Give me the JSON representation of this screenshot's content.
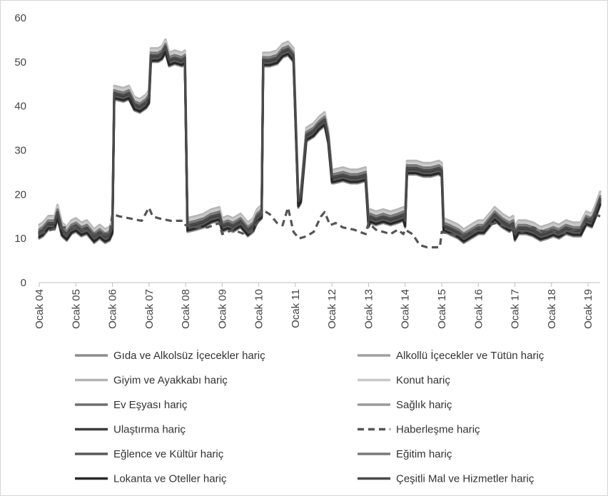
{
  "chart_data": {
    "type": "line",
    "title": "",
    "xlabel": "",
    "ylabel": "",
    "ylim": [
      0,
      60
    ],
    "y_ticks": [
      0,
      10,
      20,
      30,
      40,
      50,
      60
    ],
    "x_range": [
      2004.0,
      2019.33
    ],
    "x_tick_labels": [
      "Ocak 04",
      "Ocak 05",
      "Ocak 06",
      "Ocak 07",
      "Ocak 08",
      "Ocak 09",
      "Ocak 10",
      "Ocak 11",
      "Ocak 12",
      "Ocak 13",
      "Ocak 14",
      "Ocak 15",
      "Ocak 16",
      "Ocak 17",
      "Ocak 18",
      "Ocak 19"
    ],
    "x_tick_positions": [
      2004,
      2005,
      2006,
      2007,
      2008,
      2009,
      2010,
      2011,
      2012,
      2013,
      2014,
      2015,
      2016,
      2017,
      2018,
      2019
    ],
    "grid": false,
    "legend_position": "bottom",
    "base_profile": {
      "x": [
        2004.0,
        2004.1,
        2004.25,
        2004.42,
        2004.5,
        2004.62,
        2004.75,
        2004.88,
        2005.0,
        2005.15,
        2005.3,
        2005.5,
        2005.65,
        2005.8,
        2005.92,
        2006.0,
        2006.05,
        2006.3,
        2006.45,
        2006.6,
        2006.75,
        2006.92,
        2007.0,
        2007.05,
        2007.25,
        2007.35,
        2007.45,
        2007.55,
        2007.7,
        2007.9,
        2007.98,
        2008.05,
        2008.3,
        2008.5,
        2008.7,
        2008.92,
        2009.0,
        2009.15,
        2009.3,
        2009.5,
        2009.7,
        2009.85,
        2009.95,
        2010.08,
        2010.12,
        2010.3,
        2010.5,
        2010.65,
        2010.8,
        2010.95,
        2011.08,
        2011.15,
        2011.3,
        2011.5,
        2011.65,
        2011.8,
        2011.9,
        2012.0,
        2012.05,
        2012.3,
        2012.5,
        2012.7,
        2012.92,
        2013.0,
        2013.05,
        2013.2,
        2013.4,
        2013.6,
        2013.8,
        2013.95,
        2014.0,
        2014.05,
        2014.3,
        2014.5,
        2014.7,
        2014.92,
        2015.0,
        2015.05,
        2015.2,
        2015.45,
        2015.6,
        2015.8,
        2016.0,
        2016.15,
        2016.25,
        2016.45,
        2016.65,
        2016.85,
        2016.95,
        2017.0,
        2017.1,
        2017.3,
        2017.5,
        2017.7,
        2017.9,
        2018.05,
        2018.2,
        2018.4,
        2018.6,
        2018.8,
        2018.95,
        2019.1,
        2019.2,
        2019.33
      ],
      "y": [
        11.5,
        12,
        13.5,
        13.5,
        16,
        12,
        11,
        12.5,
        13,
        12,
        12.5,
        10.5,
        11.5,
        10.5,
        11,
        12.5,
        43,
        42.5,
        43,
        40.5,
        40,
        41,
        42,
        51.5,
        51.5,
        52,
        53.5,
        50.5,
        51,
        50.5,
        51,
        13,
        13.5,
        14,
        15,
        15.5,
        13,
        13.5,
        13,
        14,
        12,
        13,
        15,
        16,
        50.5,
        50.5,
        51,
        52.5,
        53,
        51.5,
        18.5,
        19.5,
        33.5,
        34.5,
        36,
        37,
        33,
        24,
        24,
        24.5,
        24,
        24,
        24.5,
        14,
        15,
        14.5,
        15,
        14.5,
        15,
        15.5,
        14,
        26,
        26,
        25.5,
        25.5,
        26,
        25.5,
        13,
        12.5,
        11.5,
        10.5,
        11.5,
        12.5,
        12.5,
        13.5,
        15.5,
        14,
        13,
        13.5,
        11,
        12.5,
        12.5,
        12,
        11,
        11.5,
        12,
        11.5,
        12.5,
        12,
        12,
        14.5,
        14,
        16,
        19
      ]
    },
    "series": [
      {
        "name": "Gıda ve Alkolsüz İçecekler hariç",
        "offset": -1.5,
        "color": "#8c8c8c",
        "dash": false
      },
      {
        "name": "Alkollü İçecekler ve Tütün hariç",
        "offset": -0.3,
        "color": "#a0a0a0",
        "dash": false
      },
      {
        "name": "Giyim ve Ayakkabı hariç",
        "offset": 1.6,
        "color": "#b4b4b4",
        "dash": false
      },
      {
        "name": "Konut hariç",
        "offset": 1.2,
        "color": "#c8c8c8",
        "dash": false
      },
      {
        "name": "Ev Eşyası hariç",
        "offset": -0.2,
        "color": "#6e6e6e",
        "dash": false
      },
      {
        "name": "Sağlık hariç",
        "offset": 0.3,
        "color": "#9a9a9a",
        "dash": false
      },
      {
        "name": "Ulaştırma hariç",
        "offset": -0.5,
        "color": "#3c3c3c",
        "dash": false
      },
      {
        "name": "Haberleşme hariç",
        "color": "#555555",
        "dash": true,
        "x": [
          2004.0,
          2004.5,
          2005.0,
          2005.5,
          2005.92,
          2006.0,
          2006.2,
          2006.5,
          2006.8,
          2007.0,
          2007.1,
          2007.3,
          2007.6,
          2007.92,
          2008.0,
          2008.3,
          2008.6,
          2008.92,
          2009.0,
          2009.3,
          2009.6,
          2009.8,
          2010.0,
          2010.1,
          2010.3,
          2010.5,
          2010.65,
          2010.8,
          2010.95,
          2011.1,
          2011.3,
          2011.5,
          2011.7,
          2011.8,
          2011.95,
          2012.1,
          2012.3,
          2012.6,
          2012.92,
          2013.0,
          2013.2,
          2013.4,
          2013.6,
          2013.8,
          2013.95,
          2014.0,
          2014.2,
          2014.4,
          2014.6,
          2014.8,
          2014.95,
          2015.0,
          2015.2,
          2015.5,
          2015.8,
          2016.0,
          2016.2,
          2016.5,
          2016.8,
          2017.0,
          2017.2,
          2017.5,
          2017.8,
          2018.0,
          2018.2,
          2018.5,
          2018.8,
          2019.0,
          2019.2,
          2019.33
        ],
        "y": [
          11,
          12.5,
          12.5,
          11,
          11,
          15.5,
          15,
          14.5,
          14,
          17,
          15,
          14.5,
          14,
          14,
          13,
          12.5,
          12.5,
          13.5,
          11,
          12,
          11,
          11.5,
          14,
          16.5,
          15.5,
          13.5,
          13,
          17,
          11.5,
          10,
          10.5,
          11.5,
          15,
          16,
          13,
          13.5,
          12.5,
          12,
          11,
          13.5,
          12,
          11.5,
          11,
          12,
          11,
          12,
          11,
          8.5,
          8,
          8,
          8,
          11.5,
          11,
          10.5,
          11.5,
          12,
          13,
          13.5,
          12.5,
          12,
          11.5,
          12.5,
          11.5,
          12,
          11,
          11.5,
          12.5,
          14,
          15.5,
          15
        ]
      },
      {
        "name": "Eğlence ve Kültür hariç",
        "offset": -0.8,
        "color": "#5a5a5a",
        "dash": false
      },
      {
        "name": "Eğitim hariç",
        "offset": 0.6,
        "color": "#7a7a7a",
        "dash": false
      },
      {
        "name": "Lokanta ve Oteller hariç",
        "offset": -1.2,
        "color": "#282828",
        "dash": false
      },
      {
        "name": "Çeşitli Mal ve Hizmetler hariç",
        "offset": 0.0,
        "color": "#4a4a4a",
        "dash": false
      }
    ]
  }
}
